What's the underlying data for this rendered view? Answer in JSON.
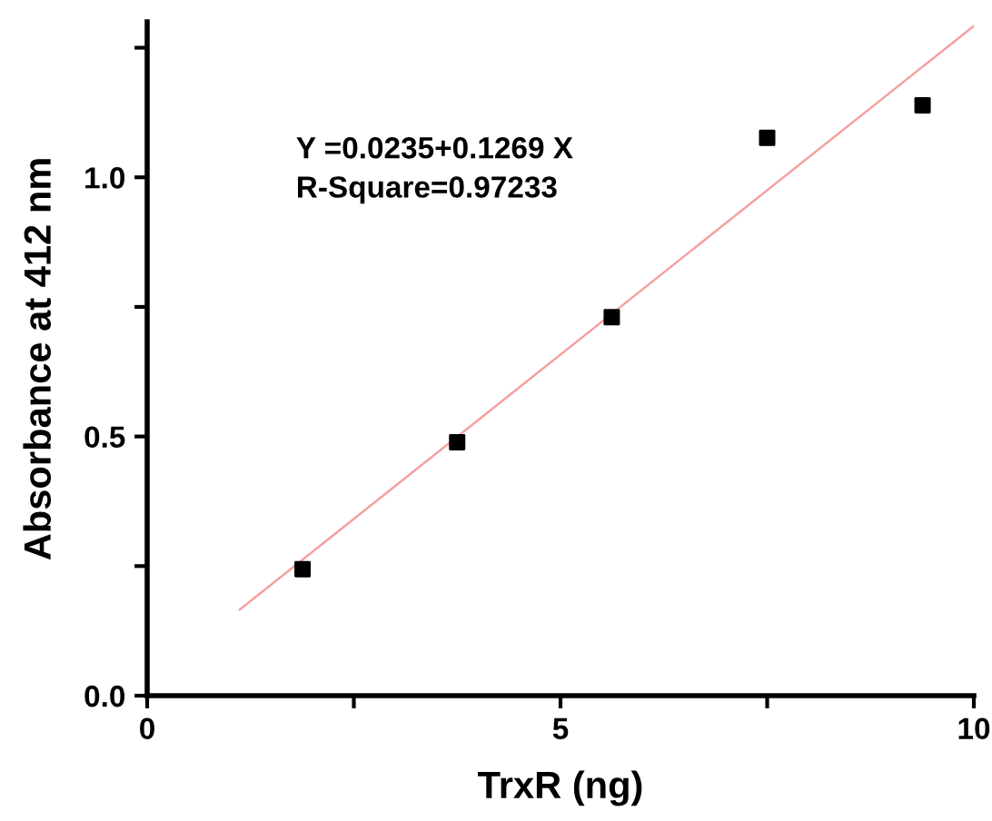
{
  "chart_data": {
    "type": "scatter",
    "xlabel": "TrxR (ng)",
    "ylabel": "Absorbance at 412 nm",
    "annotations": [
      "Y =0.0235+0.1269 X\nR-Square=0.97233"
    ],
    "series": [
      {
        "color": "#000000",
        "marker": "square",
        "x": [
          1.88,
          3.75,
          5.62,
          7.5,
          9.38
        ],
        "values": [
          0.244,
          0.489,
          0.73,
          1.076,
          1.139
        ]
      },
      {
        "type": "line",
        "color": "#f4a0a0",
        "line_style": "solid",
        "x": [
          1.12,
          10
        ],
        "values": [
          0.166,
          1.292
        ]
      }
    ],
    "xlim": [
      0,
      10
    ],
    "ylim": [
      0,
      1.3
    ],
    "xticks": [
      0,
      {
        "value": 2.5,
        "label": null
      },
      5,
      {
        "value": 7.5,
        "label": null
      },
      10
    ],
    "yticks": [
      {
        "value": 0,
        "label": "0.0"
      },
      {
        "value": 0.25,
        "label": null
      },
      0.5,
      {
        "value": 0.75,
        "label": null
      },
      {
        "value": 1,
        "label": "1.0"
      },
      {
        "value": 1.25,
        "label": null
      }
    ],
    "grid": false,
    "legend": false
  }
}
